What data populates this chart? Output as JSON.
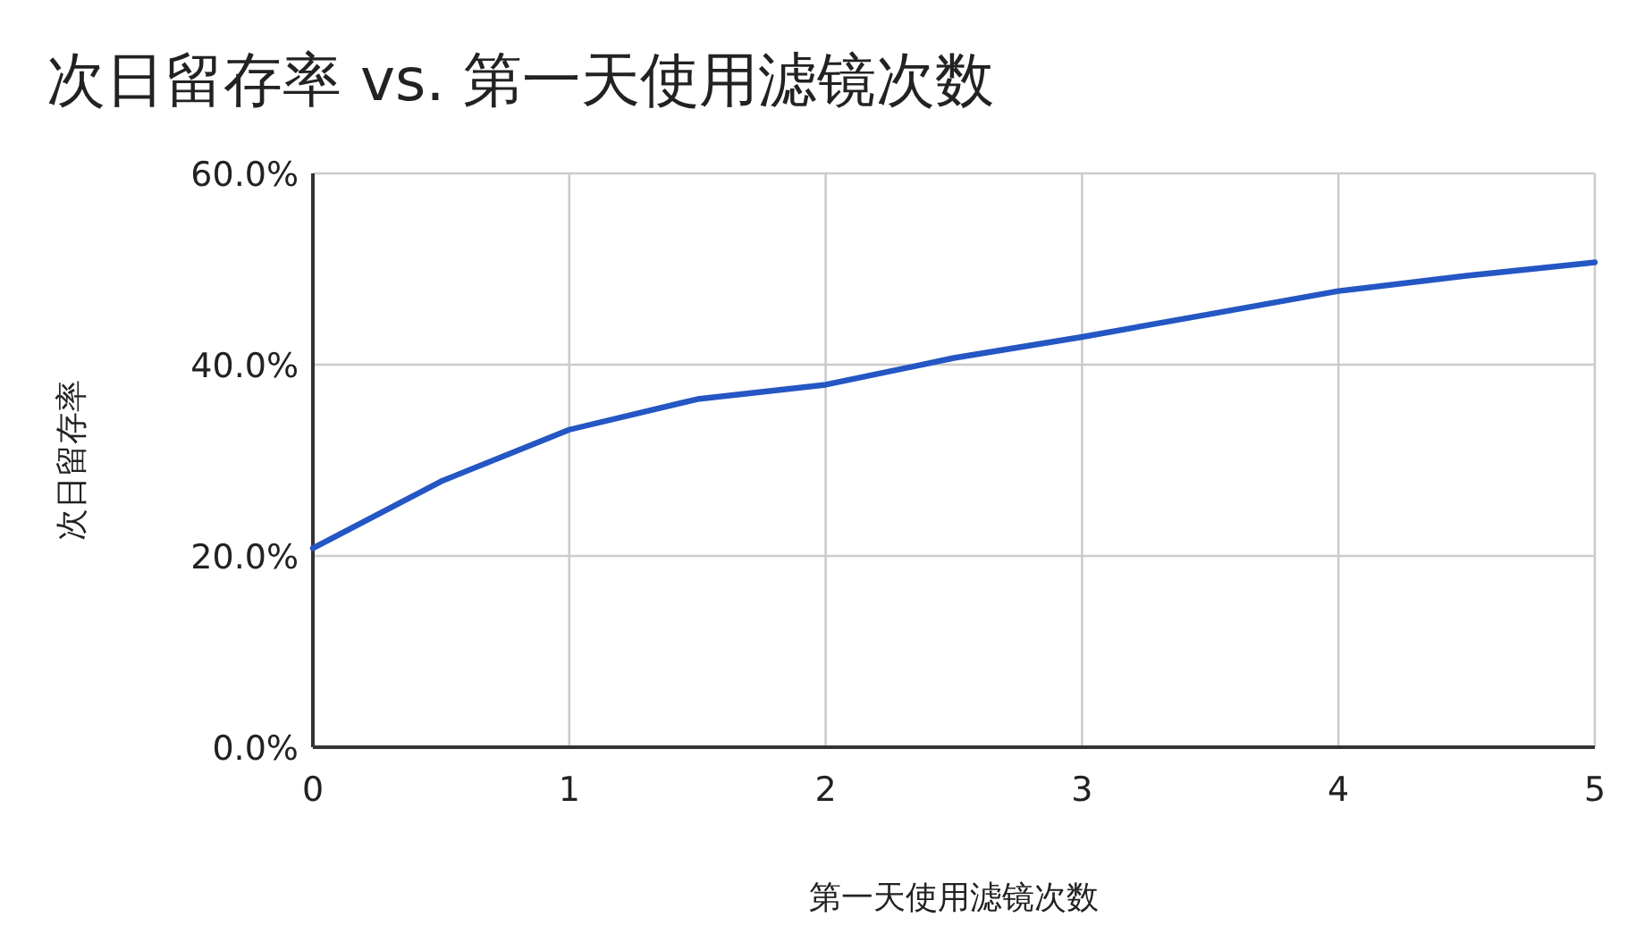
{
  "chart_data": {
    "type": "line",
    "title": "次日留存率 vs. 第一天使用滤镜次数",
    "xlabel": "第一天使用滤镜次数",
    "ylabel": "次日留存率",
    "x": [
      0,
      0.5,
      1,
      1.5,
      2,
      2.5,
      3,
      3.5,
      4,
      4.5,
      5
    ],
    "series": [
      {
        "color": "#2456c4",
        "values": [
          20.8,
          27.8,
          33.2,
          36.4,
          37.9,
          40.7,
          42.9,
          45.3,
          47.7,
          49.3,
          50.7
        ]
      }
    ],
    "xlim": [
      0,
      5
    ],
    "xticks": [
      0,
      1,
      2,
      3,
      4,
      5
    ],
    "ylim": [
      0,
      60
    ],
    "yticks": [
      {
        "value": 0,
        "label": "0.0%"
      },
      {
        "value": 20,
        "label": "20.0%"
      },
      {
        "value": 40,
        "label": "40.0%"
      },
      {
        "value": 60,
        "label": "60.0%"
      }
    ],
    "grid": true,
    "marker": "none",
    "line_style": "solid"
  }
}
